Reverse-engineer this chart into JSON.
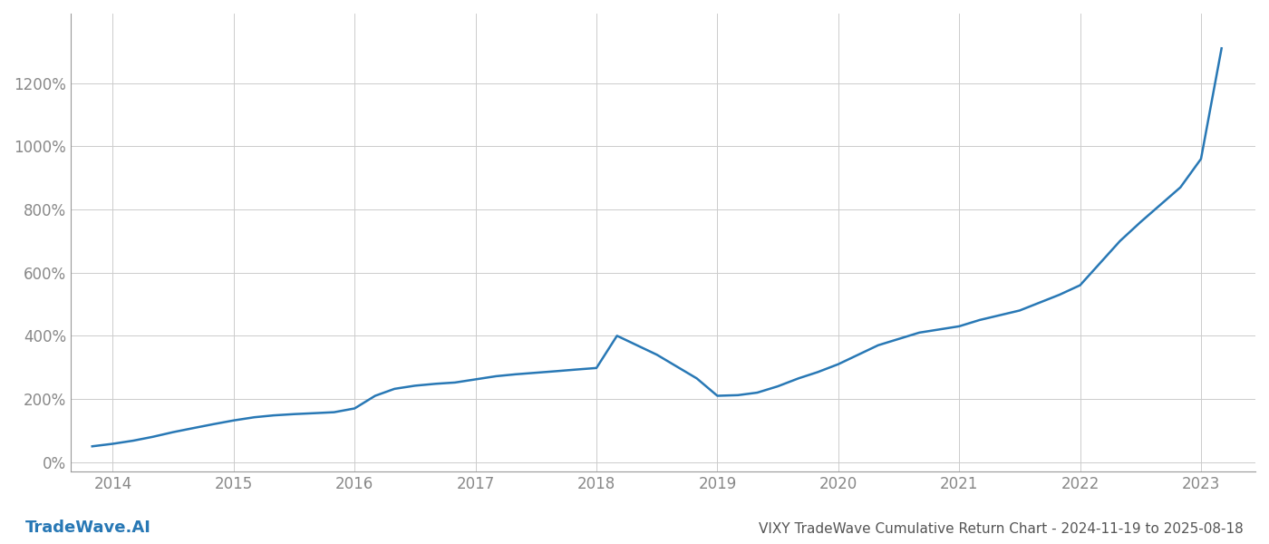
{
  "title": "VIXY TradeWave Cumulative Return Chart - 2024-11-19 to 2025-08-18",
  "watermark": "TradeWave.AI",
  "line_color": "#2878b5",
  "line_width": 1.8,
  "background_color": "#ffffff",
  "grid_color": "#cccccc",
  "x_years": [
    2014,
    2015,
    2016,
    2017,
    2018,
    2019,
    2020,
    2021,
    2022,
    2023
  ],
  "x_values": [
    2013.83,
    2014.0,
    2014.17,
    2014.33,
    2014.5,
    2014.67,
    2014.83,
    2015.0,
    2015.17,
    2015.33,
    2015.5,
    2015.67,
    2015.83,
    2016.0,
    2016.17,
    2016.33,
    2016.5,
    2016.67,
    2016.83,
    2017.0,
    2017.17,
    2017.33,
    2017.5,
    2017.67,
    2017.83,
    2018.0,
    2018.17,
    2018.5,
    2018.83,
    2019.0,
    2019.17,
    2019.33,
    2019.5,
    2019.67,
    2019.83,
    2020.0,
    2020.33,
    2020.67,
    2021.0,
    2021.17,
    2021.5,
    2021.83,
    2022.0,
    2022.33,
    2022.5,
    2022.83,
    2023.0,
    2023.17
  ],
  "y_values": [
    50,
    58,
    68,
    80,
    95,
    108,
    120,
    132,
    142,
    148,
    152,
    155,
    158,
    170,
    210,
    232,
    242,
    248,
    252,
    262,
    272,
    278,
    283,
    288,
    293,
    298,
    400,
    340,
    265,
    210,
    212,
    220,
    240,
    265,
    285,
    310,
    370,
    410,
    430,
    450,
    480,
    530,
    560,
    700,
    760,
    870,
    960,
    1310
  ],
  "ylim": [
    -30,
    1420
  ],
  "yticks": [
    0,
    200,
    400,
    600,
    800,
    1000,
    1200
  ],
  "xlim": [
    2013.65,
    2023.45
  ],
  "title_color": "#555555",
  "tick_color": "#888888",
  "title_fontsize": 11,
  "tick_fontsize": 12,
  "watermark_fontsize": 13,
  "spine_color": "#999999"
}
